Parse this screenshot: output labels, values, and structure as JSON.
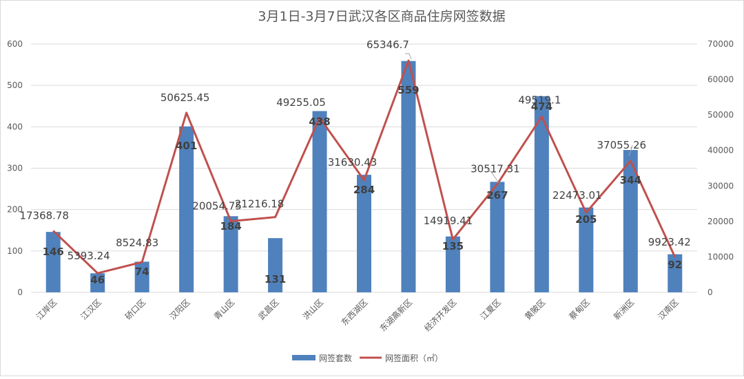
{
  "chart_data": {
    "type": "bar",
    "title": "3月1日-3月7日武汉各区商品住房网签数据",
    "categories": [
      "江岸区",
      "江汉区",
      "硚口区",
      "汉阳区",
      "青山区",
      "武昌区",
      "洪山区",
      "东西湖区",
      "东湖高新区",
      "经济开发区",
      "江夏区",
      "黄陂区",
      "蔡甸区",
      "新洲区",
      "汉南区"
    ],
    "y_left": {
      "min": 0,
      "max": 600,
      "ticks": [
        "0",
        "100",
        "200",
        "300",
        "400",
        "500",
        "600"
      ]
    },
    "y_right": {
      "min": 0,
      "max": 70000,
      "ticks": [
        "0",
        "10000",
        "20000",
        "30000",
        "40000",
        "50000",
        "60000",
        "70000"
      ]
    },
    "series": [
      {
        "name": "网签套数",
        "type": "bar",
        "axis": "left",
        "color": "#4f81bd",
        "values": [
          146,
          46,
          74,
          401,
          184,
          131,
          438,
          284,
          559,
          135,
          267,
          474,
          205,
          344,
          92
        ],
        "labels": [
          "146",
          "46",
          "74",
          "401",
          "184",
          "131",
          "438",
          "284",
          "559",
          "135",
          "267",
          "474",
          "205",
          "344",
          "92"
        ]
      },
      {
        "name": "网签面积（㎡）",
        "type": "line",
        "axis": "right",
        "color": "#c0504d",
        "values": [
          17368.78,
          5393.24,
          8524.83,
          50625.45,
          20054.75,
          21216.18,
          49255.05,
          31630.43,
          65346.7,
          14919.41,
          30517.31,
          49519.1,
          22473.01,
          37055.26,
          9923.42
        ],
        "labels": [
          "17368.78",
          "5393.24",
          "8524.83",
          "50625.45",
          "20054.75",
          "21216.18",
          "49255.05",
          "31630.43",
          "65346.7",
          "14919.41",
          "30517.31",
          "49519.1",
          "22473.01",
          "37055.26",
          "9923.42"
        ]
      }
    ],
    "grid": true,
    "legend_position": "bottom"
  }
}
